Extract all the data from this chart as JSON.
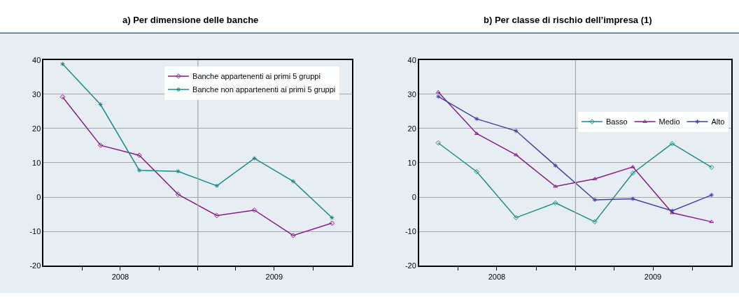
{
  "chart_data": [
    {
      "type": "line",
      "title": "a) Per dimensione delle banche",
      "x": [
        "2008-02-15",
        "2008-05-15",
        "2008-08-15",
        "2008-11-15",
        "2009-02-15",
        "2009-05-15",
        "2009-08-15",
        "2009-11-15"
      ],
      "xlim": [
        "2008-01-01",
        "2010-01-01"
      ],
      "xticks": [
        {
          "value": "2008-04-01",
          "label": null
        },
        {
          "value": "2008-07-01",
          "label": "2008"
        },
        {
          "value": "2008-10-01",
          "label": null
        },
        {
          "value": "2009-01-01",
          "label": null
        },
        {
          "value": "2009-04-01",
          "label": null
        },
        {
          "value": "2009-07-01",
          "label": "2009"
        },
        {
          "value": "2009-10-01",
          "label": null
        }
      ],
      "ylim": [
        -20,
        40
      ],
      "yticks": [
        -20,
        -10,
        0,
        10,
        20,
        30,
        40
      ],
      "grid": "y",
      "legend": "top right",
      "ref_lines": [
        {
          "axis": "x",
          "value": "2009-01-01",
          "color": "#a6a6a6"
        }
      ],
      "series": [
        {
          "name": "Banche appartenenti ai primi 5 gruppi",
          "color": "#8b1a89",
          "marker": "diamond",
          "values": [
            29.2,
            15.1,
            12.2,
            0.8,
            -5.4,
            -3.8,
            -11.2,
            -7.6
          ]
        },
        {
          "name": "Banche non appartenenti ai primi 5 gruppi",
          "color": "#1a8c8c",
          "marker": "cross",
          "values": [
            38.8,
            27.0,
            7.8,
            7.5,
            3.3,
            11.3,
            4.6,
            -6.0
          ]
        }
      ]
    },
    {
      "type": "line",
      "title": "b) Per classe di rischio dell’impresa (1)",
      "x": [
        "2008-02-15",
        "2008-05-15",
        "2008-08-15",
        "2008-11-15",
        "2009-02-15",
        "2009-05-15",
        "2009-08-15",
        "2009-11-15"
      ],
      "xlim": [
        "2008-01-01",
        "2010-01-01"
      ],
      "xticks": [
        {
          "value": "2008-04-01",
          "label": null
        },
        {
          "value": "2008-07-01",
          "label": "2008"
        },
        {
          "value": "2008-10-01",
          "label": null
        },
        {
          "value": "2009-01-01",
          "label": null
        },
        {
          "value": "2009-04-01",
          "label": null
        },
        {
          "value": "2009-07-01",
          "label": "2009"
        },
        {
          "value": "2009-10-01",
          "label": null
        }
      ],
      "ylim": [
        -20,
        40
      ],
      "yticks": [
        -20,
        -10,
        0,
        10,
        20,
        30,
        40
      ],
      "grid": "y",
      "legend": "right",
      "ref_lines": [
        {
          "axis": "x",
          "value": "2009-01-01",
          "color": "#a6a6a6"
        }
      ],
      "series": [
        {
          "name": "Basso",
          "color": "#1a8c8c",
          "marker": "diamond",
          "values": [
            15.8,
            7.4,
            -6.0,
            -1.7,
            -7.2,
            7.0,
            15.6,
            8.7
          ]
        },
        {
          "name": "Medio",
          "color": "#8b1a89",
          "marker": "triangle",
          "values": [
            30.6,
            18.5,
            12.3,
            3.1,
            5.3,
            8.8,
            -4.6,
            -7.2
          ]
        },
        {
          "name": "Alto",
          "color": "#4040a8",
          "marker": "cross",
          "values": [
            29.3,
            22.8,
            19.3,
            9.2,
            -0.8,
            -0.5,
            -4.0,
            0.6
          ]
        }
      ]
    }
  ]
}
